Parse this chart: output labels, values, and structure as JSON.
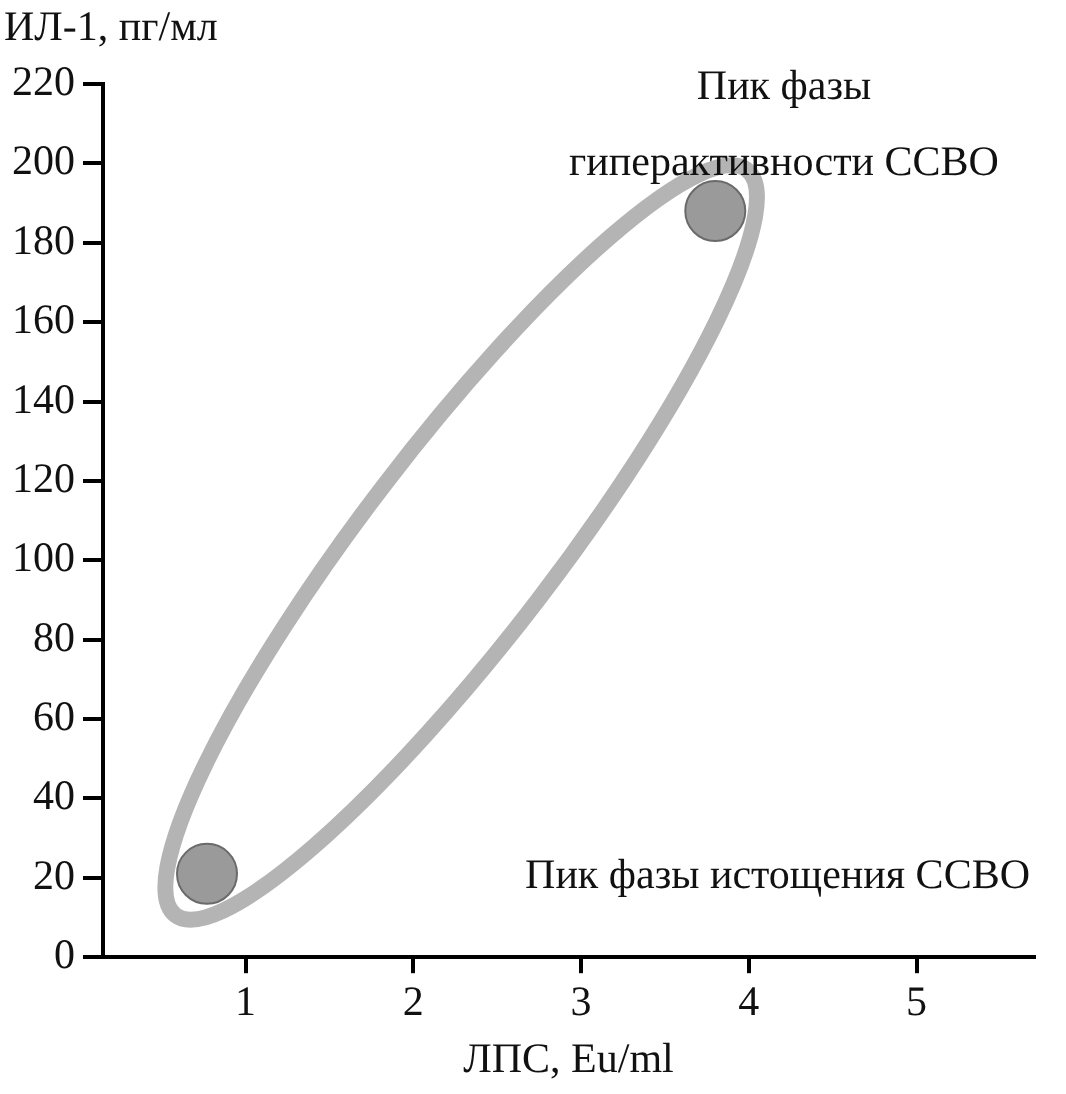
{
  "chart_data": {
    "type": "scatter",
    "xlabel": "ЛПС, Eu/ml",
    "ylabel": "ИЛ-1, пг/мл",
    "x": [
      0.77,
      3.8
    ],
    "values": [
      21,
      188
    ],
    "color": "#9a9a9a",
    "marker": "circle",
    "xlim": [
      0.15,
      5.7
    ],
    "xticks": [
      1,
      2,
      3,
      4,
      5
    ],
    "ylim": [
      0,
      220
    ],
    "yticks": [
      0,
      20,
      40,
      60,
      80,
      100,
      120,
      140,
      160,
      180,
      200,
      220
    ],
    "grid": false,
    "legend": false,
    "annotations": [
      "Пик фазы гиперактивности ССВО",
      "Пик фазы истощения ССВО"
    ]
  }
}
